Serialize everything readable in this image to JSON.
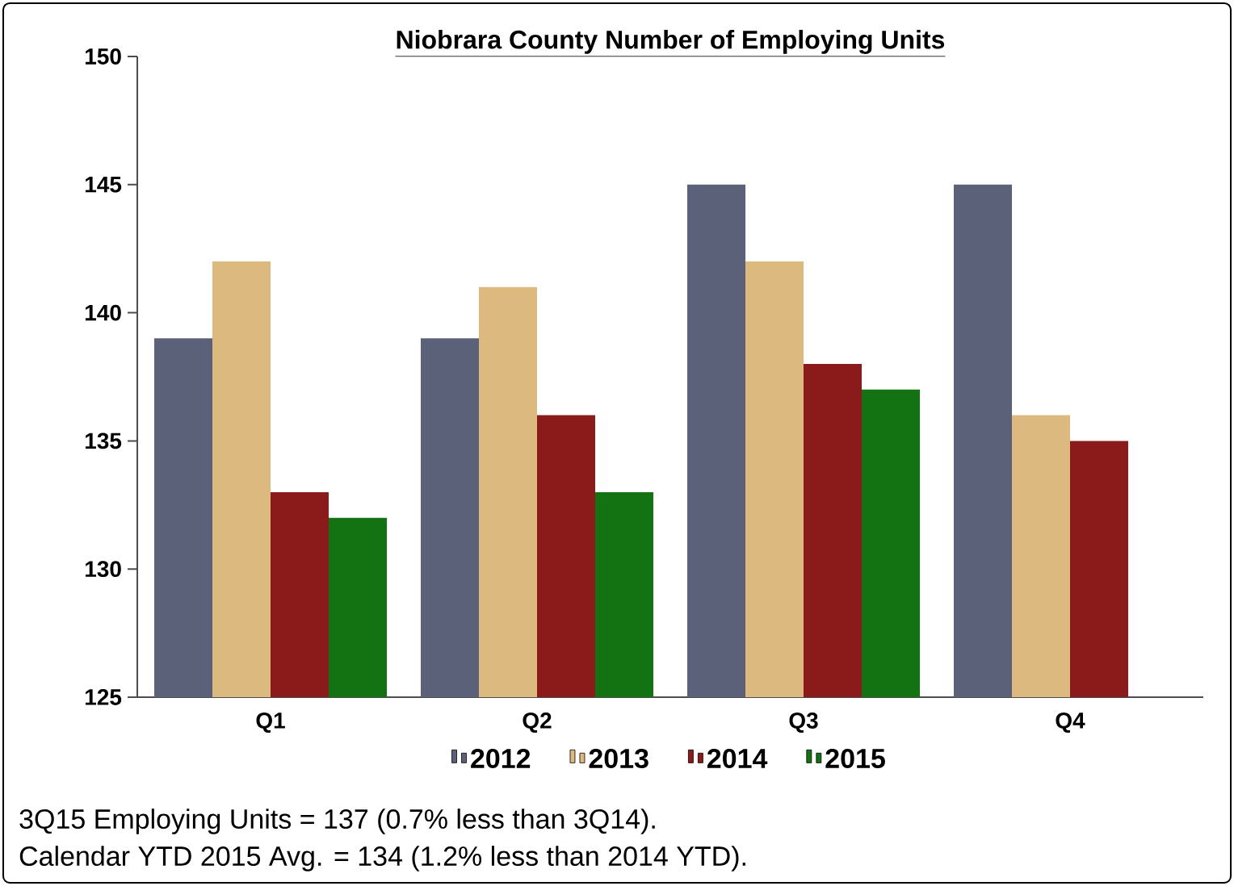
{
  "chart_data": {
    "type": "bar",
    "title": "Niobrara County Number of Employing Units",
    "categories": [
      "Q1",
      "Q2",
      "Q3",
      "Q4"
    ],
    "series": [
      {
        "name": "2012",
        "color": "#5a6178",
        "values": [
          139,
          139,
          145,
          145
        ]
      },
      {
        "name": "2013",
        "color": "#dcb97f",
        "values": [
          142,
          141,
          142,
          136
        ]
      },
      {
        "name": "2014",
        "color": "#8b1a1a",
        "values": [
          133,
          136,
          138,
          135
        ]
      },
      {
        "name": "2015",
        "color": "#137313",
        "values": [
          132,
          133,
          137,
          null
        ]
      }
    ],
    "ylim": [
      125,
      150
    ],
    "yticks": [
      125,
      130,
      135,
      140,
      145,
      150
    ],
    "grid": false,
    "legend": "bottom",
    "annotations": [
      "3Q15 Employing Units = 137 (0.7% less than 3Q14).",
      "Calendar YTD 2015 Avg. = 134 (1.2% less than 2014 YTD)."
    ]
  }
}
